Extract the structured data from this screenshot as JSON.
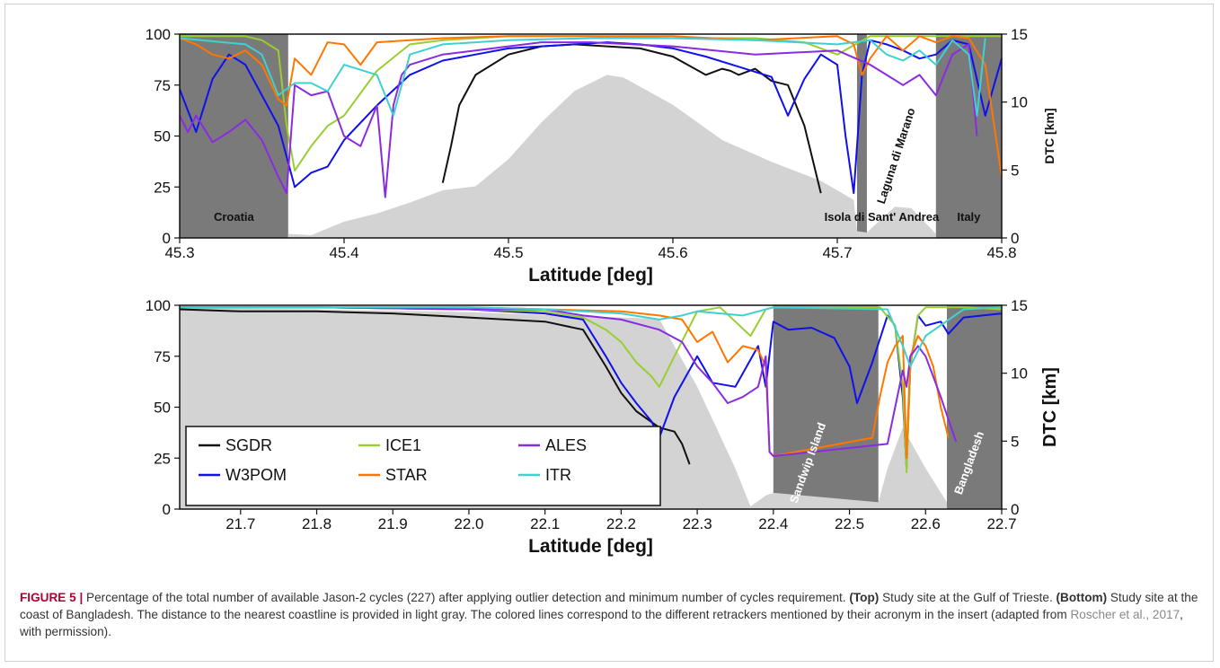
{
  "caption": {
    "label": "FIGURE 5 |",
    "text1": " Percentage of the total number of available Jason-2 cycles (227) after applying outlier detection and minimum number of cycles requirement. ",
    "top_bold": "(Top)",
    "text2": " Study site at the Gulf of Trieste. ",
    "bottom_bold": "(Bottom)",
    "text3": " Study site at the coast of Bangladesh. The distance to the nearest coastline is provided in light gray. The colored lines correspond to the different retrackers mentioned by their acronym in the insert (adapted from ",
    "citation": "Roscher et al., 2017",
    "text4": ", with permission)."
  },
  "colors": {
    "SGDR": "#111111",
    "ICE1": "#9acd32",
    "ALES": "#8a2be2",
    "W3POM": "#1010ee",
    "STAR": "#ff7700",
    "ITR": "#40d0d0",
    "land": "#7a7a7a",
    "dtc": "#d3d3d3"
  },
  "chart_data": [
    {
      "type": "line",
      "xlabel": "Latitude [deg]",
      "ylabel_right": "DTC [km]",
      "xlim": [
        45.3,
        45.8
      ],
      "ylim": [
        0,
        100
      ],
      "y2lim": [
        0,
        15
      ],
      "xticks": [
        "45.3",
        "45.4",
        "45.5",
        "45.6",
        "45.7",
        "45.8"
      ],
      "yticks": [
        "0",
        "25",
        "50",
        "75",
        "100"
      ],
      "y2ticks": [
        "0",
        "5",
        "10",
        "15"
      ],
      "regions": [
        {
          "label": "Croatia",
          "x0": 45.3,
          "x1": 45.366
        },
        {
          "label": "",
          "x0": 45.712,
          "x1": 45.718
        },
        {
          "label": "Italy",
          "x0": 45.76,
          "x1": 45.8
        }
      ],
      "annotations": [
        "Isola di Sant' Andrea",
        "Laguna di Marano"
      ],
      "dtc": {
        "x": [
          45.366,
          45.38,
          45.4,
          45.42,
          45.44,
          45.46,
          45.48,
          45.5,
          45.52,
          45.54,
          45.56,
          45.57,
          45.6,
          45.63,
          45.66,
          45.69,
          45.71,
          45.712,
          45.718,
          45.735,
          45.745,
          45.76
        ],
        "y": [
          0.3,
          0.2,
          1.2,
          1.8,
          2.6,
          3.5,
          3.8,
          5.8,
          8.5,
          10.8,
          12,
          11.8,
          9.8,
          7.2,
          5.6,
          4.2,
          2.8,
          0.5,
          0.4,
          2.3,
          2.2,
          0.3
        ]
      },
      "series": [
        {
          "name": "SGDR",
          "x": [
            45.46,
            45.465,
            45.47,
            45.48,
            45.5,
            45.52,
            45.54,
            45.56,
            45.58,
            45.6,
            45.62,
            45.63,
            45.635,
            45.64,
            45.65,
            45.66,
            45.67,
            45.68,
            45.69
          ],
          "y": [
            27,
            45,
            65,
            80,
            90,
            94,
            95,
            94,
            93,
            89,
            80,
            83,
            82,
            80,
            83,
            77,
            75,
            55,
            22
          ]
        },
        {
          "name": "W3POM",
          "x": [
            45.3,
            45.31,
            45.32,
            45.33,
            45.34,
            45.35,
            45.36,
            45.37,
            45.38,
            45.39,
            45.4,
            45.42,
            45.44,
            45.46,
            45.48,
            45.5,
            45.52,
            45.54,
            45.56,
            45.58,
            45.6,
            45.62,
            45.64,
            45.66,
            45.67,
            45.68,
            45.69,
            45.7,
            45.705,
            45.71,
            45.715,
            45.72,
            45.73,
            45.74,
            45.75,
            45.76,
            45.77,
            45.78,
            45.79,
            45.8
          ],
          "y": [
            73,
            52,
            78,
            90,
            85,
            70,
            55,
            25,
            32,
            35,
            48,
            65,
            80,
            87,
            90,
            93,
            94,
            95,
            96,
            95,
            93,
            89,
            84,
            79,
            60,
            78,
            90,
            85,
            50,
            22,
            80,
            97,
            95,
            92,
            88,
            90,
            97,
            95,
            60,
            88
          ]
        },
        {
          "name": "ICE1",
          "x": [
            45.3,
            45.31,
            45.32,
            45.33,
            45.34,
            45.35,
            45.36,
            45.365,
            45.37,
            45.38,
            45.39,
            45.4,
            45.42,
            45.44,
            45.46,
            45.5,
            45.55,
            45.6,
            45.65,
            45.68,
            45.7,
            45.72,
            45.74,
            45.76,
            45.78,
            45.8
          ],
          "y": [
            99,
            99,
            99,
            99,
            99,
            97,
            92,
            55,
            33,
            45,
            55,
            60,
            82,
            95,
            97,
            99,
            99,
            98,
            98,
            96,
            90,
            99,
            99,
            99,
            99,
            99
          ]
        },
        {
          "name": "STAR",
          "x": [
            45.3,
            45.31,
            45.32,
            45.33,
            45.34,
            45.35,
            45.36,
            45.365,
            45.37,
            45.38,
            45.39,
            45.4,
            45.41,
            45.42,
            45.44,
            45.46,
            45.5,
            45.55,
            45.6,
            45.65,
            45.7,
            45.71,
            45.715,
            45.72,
            45.73,
            45.74,
            45.75,
            45.76,
            45.77,
            45.78,
            45.79,
            45.8
          ],
          "y": [
            98,
            95,
            90,
            88,
            92,
            85,
            68,
            65,
            88,
            80,
            96,
            95,
            85,
            96,
            97,
            98,
            99,
            99,
            99,
            97,
            99,
            95,
            80,
            88,
            99,
            92,
            99,
            96,
            99,
            98,
            85,
            30
          ]
        },
        {
          "name": "ALES",
          "x": [
            45.3,
            45.305,
            45.31,
            45.32,
            45.33,
            45.34,
            45.35,
            45.36,
            45.365,
            45.37,
            45.38,
            45.39,
            45.4,
            45.41,
            45.42,
            45.425,
            45.43,
            45.435,
            45.44,
            45.46,
            45.48,
            45.5,
            45.52,
            45.55,
            45.6,
            45.65,
            45.7,
            45.72,
            45.73,
            45.74,
            45.75,
            45.76,
            45.77,
            45.78,
            45.785
          ],
          "y": [
            60,
            52,
            60,
            47,
            52,
            58,
            48,
            30,
            22,
            75,
            70,
            72,
            50,
            45,
            65,
            20,
            65,
            80,
            85,
            90,
            92,
            94,
            96,
            96,
            94,
            90,
            92,
            85,
            80,
            75,
            80,
            70,
            90,
            95,
            50
          ]
        },
        {
          "name": "ITR",
          "x": [
            45.3,
            45.34,
            45.35,
            45.36,
            45.37,
            45.38,
            45.39,
            45.4,
            45.42,
            45.43,
            45.44,
            45.46,
            45.5,
            45.55,
            45.6,
            45.65,
            45.7,
            45.72,
            45.73,
            45.74,
            45.75,
            45.76,
            45.77,
            45.78,
            45.785,
            45.79
          ],
          "y": [
            98,
            95,
            90,
            70,
            76,
            76,
            72,
            85,
            80,
            60,
            90,
            95,
            97,
            98,
            98,
            97,
            95,
            97,
            90,
            87,
            92,
            85,
            97,
            90,
            60,
            98
          ]
        }
      ]
    },
    {
      "type": "line",
      "xlabel": "Latitude [deg]",
      "ylabel_right": "DTC [km]",
      "xlim": [
        21.62,
        22.7
      ],
      "ylim": [
        0,
        100
      ],
      "y2lim": [
        0,
        15
      ],
      "xticks": [
        "21.7",
        "21.8",
        "21.9",
        "22.0",
        "22.1",
        "22.2",
        "22.3",
        "22.4",
        "22.5",
        "22.6",
        "22.7"
      ],
      "yticks": [
        "0",
        "25",
        "50",
        "75",
        "100"
      ],
      "y2ticks": [
        "0",
        "5",
        "10",
        "15"
      ],
      "regions": [
        {
          "label": "Sandwip Island",
          "x0": 22.4,
          "x1": 22.538
        },
        {
          "label": "Bangladesh",
          "x0": 22.628,
          "x1": 22.7
        }
      ],
      "legend": [
        "SGDR",
        "ICE1",
        "ALES",
        "W3POM",
        "STAR",
        "ITR"
      ],
      "dtc": {
        "x": [
          21.62,
          21.8,
          22.0,
          22.1,
          22.2,
          22.25,
          22.3,
          22.35,
          22.37,
          22.39,
          22.4,
          22.538,
          22.55,
          22.57,
          22.6,
          22.628
        ],
        "y": [
          14.8,
          14.7,
          14.5,
          14.3,
          14.1,
          14.0,
          9,
          3,
          0.2,
          1,
          1.2,
          0.5,
          3,
          6,
          3,
          0.5
        ]
      },
      "series": [
        {
          "name": "SGDR",
          "x": [
            21.62,
            21.7,
            21.8,
            21.9,
            22.0,
            22.1,
            22.15,
            22.18,
            22.2,
            22.22,
            22.25,
            22.27,
            22.28,
            22.29
          ],
          "y": [
            98,
            97,
            97,
            96,
            94,
            92,
            88,
            70,
            57,
            48,
            40,
            38,
            32,
            22
          ]
        },
        {
          "name": "W3POM",
          "x": [
            21.62,
            21.8,
            22.0,
            22.1,
            22.15,
            22.18,
            22.2,
            22.22,
            22.24,
            22.25,
            22.27,
            22.3,
            22.32,
            22.35,
            22.38,
            22.39,
            22.4,
            22.42,
            22.45,
            22.48,
            22.5,
            22.51,
            22.53,
            22.55,
            22.56,
            22.57,
            22.575,
            22.58,
            22.59,
            22.6,
            22.62,
            22.63,
            22.65,
            22.7
          ],
          "y": [
            99,
            99,
            98,
            96,
            93,
            75,
            62,
            52,
            43,
            35,
            55,
            75,
            62,
            60,
            80,
            60,
            92,
            88,
            89,
            84,
            70,
            52,
            72,
            95,
            90,
            55,
            20,
            70,
            95,
            90,
            92,
            86,
            94,
            96
          ]
        },
        {
          "name": "ICE1",
          "x": [
            21.62,
            21.8,
            22.0,
            22.1,
            22.15,
            22.18,
            22.2,
            22.22,
            22.24,
            22.25,
            22.27,
            22.3,
            22.33,
            22.35,
            22.37,
            22.39,
            22.4,
            22.45,
            22.5,
            22.54,
            22.56,
            22.57,
            22.575,
            22.58,
            22.59,
            22.6,
            22.65,
            22.7
          ],
          "y": [
            99,
            99,
            98,
            97,
            94,
            88,
            82,
            72,
            65,
            60,
            75,
            97,
            99,
            92,
            85,
            98,
            99,
            99,
            99,
            99,
            90,
            60,
            18,
            70,
            95,
            99,
            99,
            98
          ]
        },
        {
          "name": "STAR",
          "x": [
            21.62,
            21.8,
            22.0,
            22.1,
            22.2,
            22.25,
            22.28,
            22.3,
            22.32,
            22.34,
            22.36,
            22.38,
            22.39,
            22.395,
            22.4,
            22.53,
            22.54,
            22.55,
            22.56,
            22.57,
            22.575,
            22.58,
            22.59,
            22.6,
            22.61,
            22.62,
            22.63
          ],
          "y": [
            99,
            99,
            99,
            98,
            97,
            95,
            93,
            82,
            87,
            72,
            80,
            78,
            70,
            28,
            26,
            35,
            55,
            72,
            80,
            85,
            25,
            75,
            85,
            80,
            70,
            50,
            35
          ]
        },
        {
          "name": "ALES",
          "x": [
            21.62,
            21.8,
            22.0,
            22.1,
            22.15,
            22.2,
            22.25,
            22.28,
            22.3,
            22.32,
            22.34,
            22.36,
            22.38,
            22.39,
            22.395,
            22.4,
            22.55,
            22.56,
            22.57,
            22.575,
            22.58,
            22.59,
            22.6,
            22.61,
            22.62,
            22.64
          ],
          "y": [
            99,
            99,
            98,
            98,
            95,
            93,
            88,
            82,
            70,
            62,
            52,
            55,
            60,
            75,
            28,
            26,
            32,
            50,
            68,
            60,
            75,
            80,
            75,
            65,
            55,
            33
          ]
        },
        {
          "name": "ITR",
          "x": [
            21.62,
            21.8,
            22.0,
            22.1,
            22.2,
            22.25,
            22.28,
            22.3,
            22.33,
            22.36,
            22.38,
            22.4,
            22.55,
            22.57,
            22.58,
            22.6,
            22.65,
            22.7
          ],
          "y": [
            99,
            99,
            99,
            98,
            96,
            93,
            95,
            97,
            96,
            95,
            97,
            99,
            98,
            80,
            70,
            85,
            98,
            99
          ]
        }
      ]
    }
  ]
}
